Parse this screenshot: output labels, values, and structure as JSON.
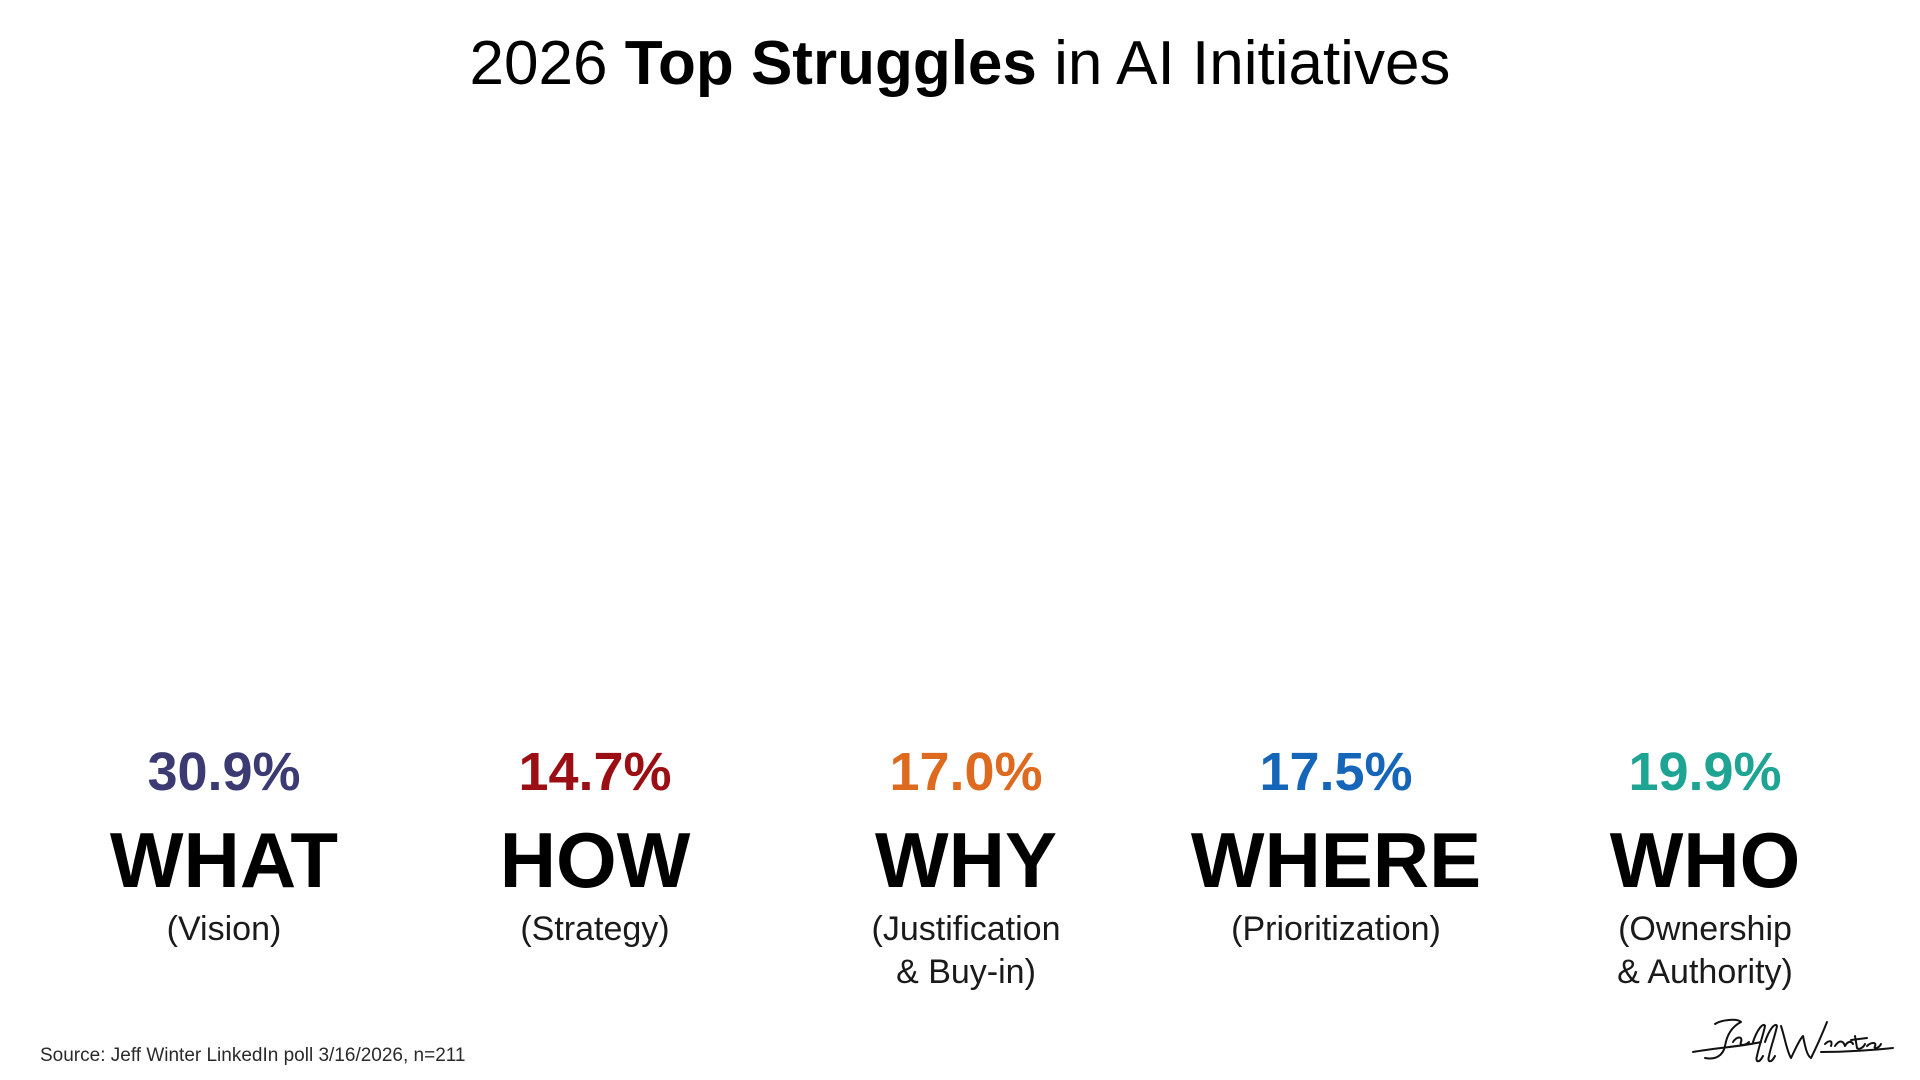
{
  "title": {
    "prefix": "2026 ",
    "emphasis": "Top Struggles",
    "suffix": " in AI Initiatives"
  },
  "chart_data": {
    "type": "table",
    "categories": [
      "WHAT",
      "HOW",
      "WHY",
      "WHERE",
      "WHO"
    ],
    "values": [
      30.9,
      14.7,
      17.0,
      17.5,
      19.9
    ],
    "unit": "%",
    "items": [
      {
        "value_label": "30.9%",
        "label": "WHAT",
        "sublabel_lines": [
          "(Vision)"
        ],
        "color": "#3b3a72"
      },
      {
        "value_label": "14.7%",
        "label": "HOW",
        "sublabel_lines": [
          "(Strategy)"
        ],
        "color": "#9b0f14"
      },
      {
        "value_label": "17.0%",
        "label": "WHY",
        "sublabel_lines": [
          "(Justification",
          "& Buy-in)"
        ],
        "color": "#de6a1f"
      },
      {
        "value_label": "17.5%",
        "label": "WHERE",
        "sublabel_lines": [
          "(Prioritization)"
        ],
        "color": "#1565b8"
      },
      {
        "value_label": "19.9%",
        "label": "WHO",
        "sublabel_lines": [
          "(Ownership",
          "& Authority)"
        ],
        "color": "#1ea492"
      }
    ]
  },
  "footer": {
    "source": "Source: Jeff Winter LinkedIn poll 3/16/2026, n=211",
    "signature": "Jeff Winter"
  }
}
